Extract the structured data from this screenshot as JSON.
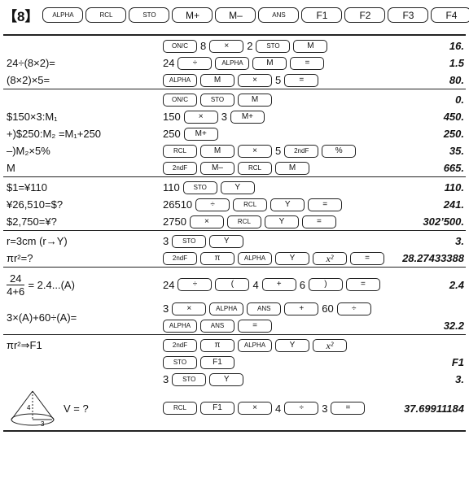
{
  "header": {
    "label": "【8】",
    "keys": [
      "ALPHA",
      "RCL",
      "STO",
      "M+",
      "M–",
      "ANS",
      "F1",
      "F2",
      "F3",
      "F4"
    ]
  },
  "sections": [
    {
      "rows": [
        {
          "lines": [
            [
              {
                "key": "ON/C"
              },
              "8",
              {
                "key": "×"
              },
              "2",
              {
                "key": "STO"
              },
              {
                "key": "M"
              }
            ]
          ],
          "result": "16."
        },
        {
          "left": "24÷(8×2)=",
          "lines": [
            [
              "24",
              {
                "key": "÷"
              },
              {
                "key": "ALPHA"
              },
              {
                "key": "M"
              },
              {
                "key": "="
              }
            ]
          ],
          "result": "1.5"
        },
        {
          "left": "(8×2)×5=",
          "lines": [
            [
              {
                "key": "ALPHA"
              },
              {
                "key": "M"
              },
              {
                "key": "×"
              },
              "5",
              {
                "key": "="
              }
            ]
          ],
          "result": "80."
        }
      ]
    },
    {
      "rows": [
        {
          "lines": [
            [
              {
                "key": "ON/C"
              },
              {
                "key": "STO"
              },
              {
                "key": "M"
              }
            ]
          ],
          "result": "0."
        },
        {
          "left": "$150×3:M₁",
          "lines": [
            [
              "150",
              {
                "key": "×"
              },
              "3",
              {
                "key": "M+"
              }
            ]
          ],
          "result": "450."
        },
        {
          "left": "+)$250:M₂ =M₁+250",
          "lines": [
            [
              "250",
              {
                "key": "M+"
              }
            ]
          ],
          "result": "250."
        },
        {
          "left": "–)M₂×5%",
          "lines": [
            [
              {
                "key": "RCL"
              },
              {
                "key": "M"
              },
              {
                "key": "×"
              },
              "5",
              {
                "key": "2ndF"
              },
              {
                "key": "%"
              }
            ]
          ],
          "result": "35."
        },
        {
          "left": "M",
          "lines": [
            [
              {
                "key": "2ndF"
              },
              {
                "key": "M–"
              },
              {
                "key": "RCL"
              },
              {
                "key": "M"
              }
            ]
          ],
          "result": "665."
        }
      ]
    },
    {
      "rows": [
        {
          "left": "$1=¥110",
          "lines": [
            [
              "110",
              {
                "key": "STO"
              },
              {
                "key": "Y"
              }
            ]
          ],
          "result": "110."
        },
        {
          "left": "¥26,510=$?",
          "lines": [
            [
              "26510",
              {
                "key": "÷"
              },
              {
                "key": "RCL"
              },
              {
                "key": "Y"
              },
              {
                "key": "="
              }
            ]
          ],
          "result": "241."
        },
        {
          "left": "$2,750=¥?",
          "lines": [
            [
              "2750",
              {
                "key": "×"
              },
              {
                "key": "RCL"
              },
              {
                "key": "Y"
              },
              {
                "key": "="
              }
            ]
          ],
          "result": "302’500."
        }
      ]
    },
    {
      "rows": [
        {
          "left": "r=3cm (r→Y)",
          "lines": [
            [
              "3",
              {
                "key": "STO"
              },
              {
                "key": "Y"
              }
            ]
          ],
          "result": "3."
        },
        {
          "left": "πr²=?",
          "lines": [
            [
              {
                "key": "2ndF"
              },
              {
                "key": "π"
              },
              {
                "key": "ALPHA"
              },
              {
                "key": "Y"
              },
              {
                "key": "x²"
              },
              {
                "key": "="
              }
            ]
          ],
          "result": "28.27433388"
        }
      ]
    },
    {
      "rows": [
        {
          "left": {
            "numerator": "24",
            "denominator": "4+6",
            "text": "= 2.4...(A)"
          },
          "lines": [
            [
              "24",
              {
                "key": "÷"
              },
              {
                "key": "("
              },
              "4",
              {
                "key": "+"
              },
              "6",
              {
                "key": ")"
              },
              {
                "key": "="
              }
            ]
          ],
          "result": "2.4"
        },
        {
          "left": "3×(A)+60÷(A)=",
          "lines": [
            [
              "3",
              {
                "key": "×"
              },
              {
                "key": "ALPHA"
              },
              {
                "key": "ANS"
              },
              {
                "key": "+"
              },
              "60",
              {
                "key": "÷"
              }
            ],
            [
              {
                "key": "ALPHA"
              },
              {
                "key": "ANS"
              },
              {
                "key": "="
              }
            ]
          ],
          "result": "32.2"
        }
      ]
    },
    {
      "rows": [
        {
          "left": "πr²⇒F1",
          "lines": [
            [
              {
                "key": "2ndF"
              },
              {
                "key": "π"
              },
              {
                "key": "ALPHA"
              },
              {
                "key": "Y"
              },
              {
                "key": "x²"
              }
            ]
          ]
        },
        {
          "lines": [
            [
              {
                "key": "STO"
              },
              {
                "key": "F1"
              }
            ]
          ],
          "result": "F1"
        },
        {
          "lines": [
            [
              "3",
              {
                "key": "STO"
              },
              {
                "key": "Y"
              }
            ]
          ],
          "result": "3."
        },
        {
          "left": {
            "cone_labels": [
              "4",
              "3"
            ],
            "text": "V = ?"
          },
          "lines": [
            [
              {
                "key": "RCL"
              },
              {
                "key": "F1"
              },
              {
                "key": "×"
              },
              "4",
              {
                "key": "÷"
              },
              "3",
              {
                "key": "="
              }
            ]
          ],
          "result": "37.69911184"
        }
      ]
    }
  ]
}
